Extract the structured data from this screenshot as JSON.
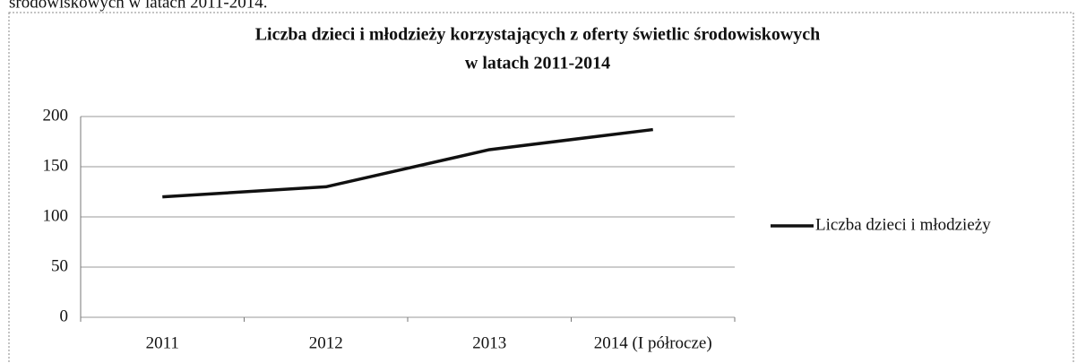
{
  "caption_fragment": "środowiskowych w latach 2011-2014.",
  "chart_data": {
    "type": "line",
    "title": [
      "Liczba dzieci i młodzieży korzystających z oferty świetlic środowiskowych",
      "w latach 2011-2014"
    ],
    "categories": [
      "2011",
      "2012",
      "2013",
      "2014 (I półrocze)"
    ],
    "series": [
      {
        "name": "Liczba dzieci i młodzieży",
        "color": "#111111",
        "values": [
          120,
          130,
          167,
          187
        ]
      }
    ],
    "ylim": [
      0,
      200
    ],
    "yticks": [
      0,
      50,
      100,
      150,
      200
    ],
    "grid": true,
    "legend": "right"
  }
}
